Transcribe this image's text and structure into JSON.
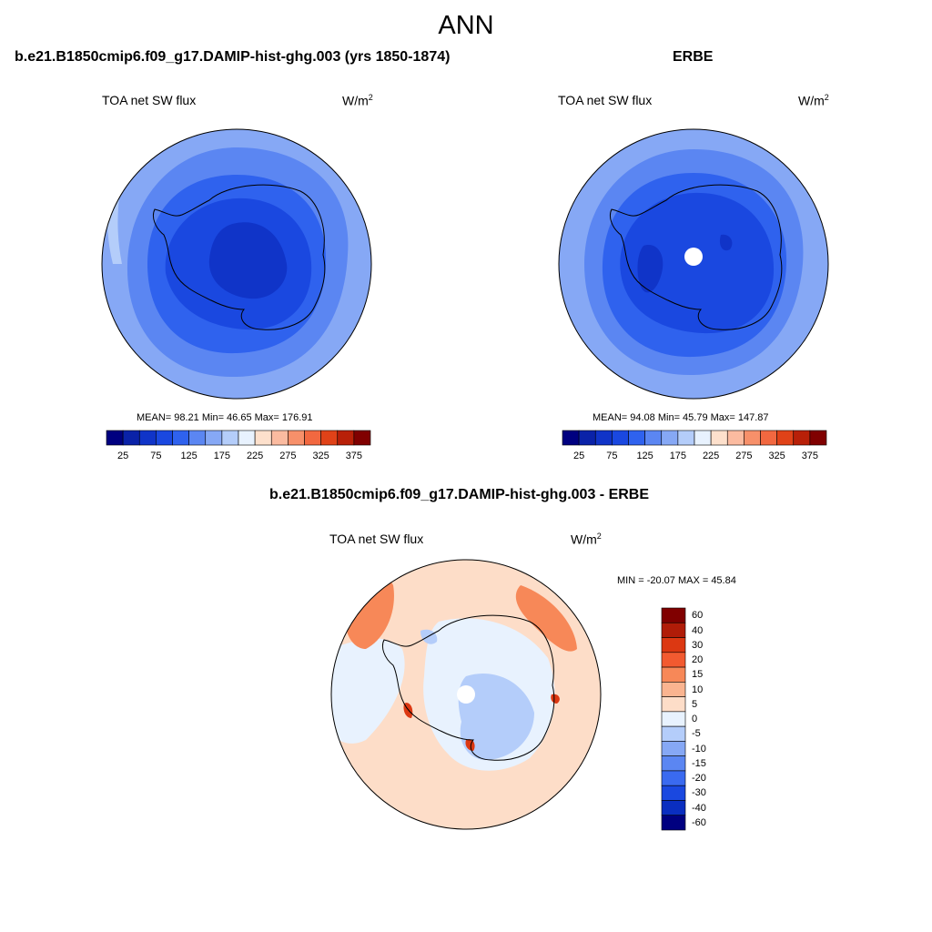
{
  "title": "ANN",
  "panels": [
    {
      "case": "b.e21.B1850cmip6.f09_g17.DAMIP-hist-ghg.003 (yrs 1850-1874)",
      "variable": "TOA net SW flux",
      "units_base": "W/m",
      "units_exp": "2",
      "stats": "MEAN=  98.21  Min=  46.65  Max= 176.91",
      "mean": 98.21,
      "min": 46.65,
      "max": 176.91
    },
    {
      "case": "ERBE",
      "variable": "TOA net SW flux",
      "units_base": "W/m",
      "units_exp": "2",
      "stats": "MEAN=  94.08  Min=  45.79  Max= 147.87",
      "mean": 94.08,
      "min": 45.79,
      "max": 147.87
    }
  ],
  "diff": {
    "case": "b.e21.B1850cmip6.f09_g17.DAMIP-hist-ghg.003 - ERBE",
    "variable": "TOA net SW flux",
    "units_base": "W/m",
    "units_exp": "2",
    "stats": "MIN = -20.07 MAX =  45.84",
    "min": -20.07,
    "max": 45.84
  },
  "colorbar_main": {
    "colors": [
      "#000080",
      "#0a22a8",
      "#1034c8",
      "#1a48e0",
      "#2f62ee",
      "#5b86f2",
      "#86a8f5",
      "#b4cdfa",
      "#e8f2fe",
      "#fde0cc",
      "#fbbba0",
      "#f7906a",
      "#f26840",
      "#e04218",
      "#b82008",
      "#800000"
    ],
    "tick_labels": [
      "25",
      "75",
      "125",
      "175",
      "225",
      "275",
      "325",
      "375"
    ]
  },
  "colorbar_diff": {
    "colors": [
      "#800000",
      "#b01c08",
      "#dc3812",
      "#f25a30",
      "#f78858",
      "#fab490",
      "#fdddc8",
      "#e8f2fe",
      "#b4cdfa",
      "#86a8f5",
      "#5b86f2",
      "#3a6af0",
      "#1a48e0",
      "#0a2ec0",
      "#000080"
    ],
    "tick_labels": [
      "60",
      "40",
      "30",
      "20",
      "15",
      "10",
      "5",
      "0",
      "-5",
      "-10",
      "-15",
      "-20",
      "-30",
      "-40",
      "-60"
    ]
  }
}
